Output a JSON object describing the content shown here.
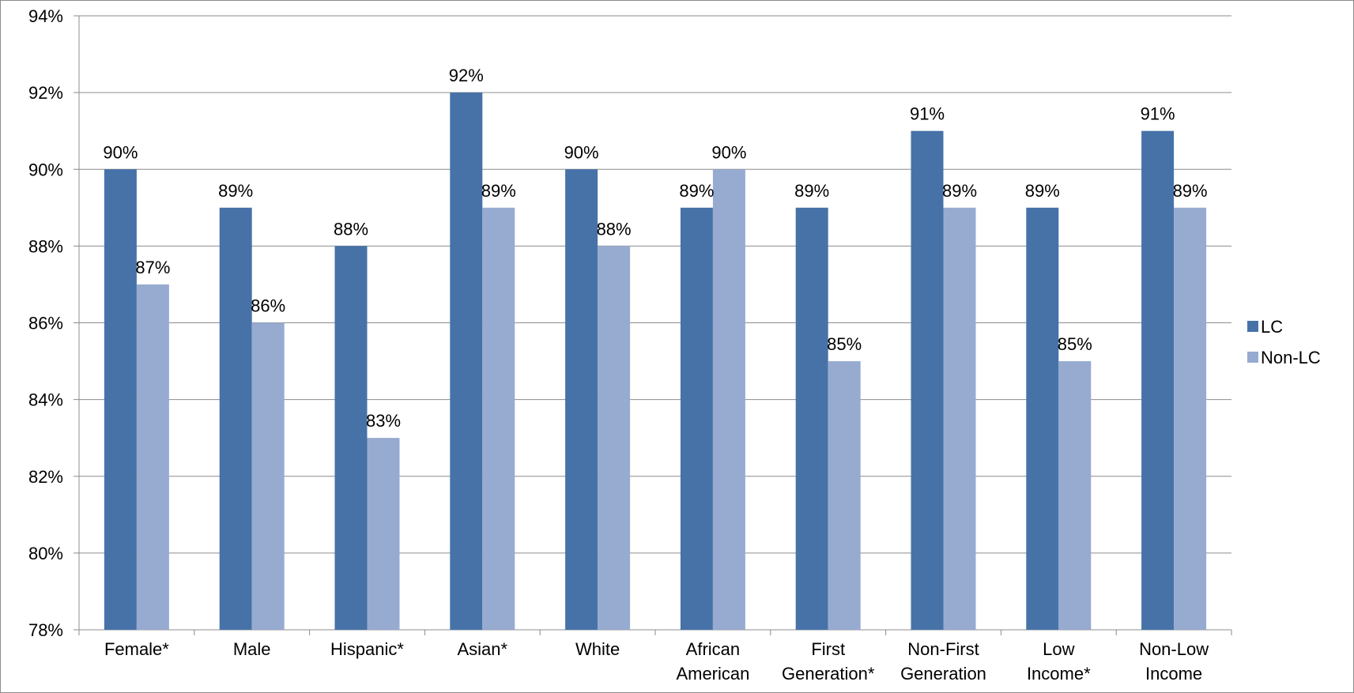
{
  "chart_data": {
    "type": "bar",
    "title": "",
    "xlabel": "",
    "ylabel": "",
    "ylim": [
      78,
      94
    ],
    "y_ticks": [
      78,
      80,
      82,
      84,
      86,
      88,
      90,
      92,
      94
    ],
    "y_tick_format": "%",
    "grid": true,
    "legend_position": "right",
    "categories": [
      [
        "Female*"
      ],
      [
        "Male"
      ],
      [
        "Hispanic*"
      ],
      [
        "Asian*"
      ],
      [
        "White"
      ],
      [
        "African",
        "American"
      ],
      [
        "First",
        "Generation*"
      ],
      [
        "Non-First",
        "Generation"
      ],
      [
        "Low",
        "Income*"
      ],
      [
        "Non-Low",
        "Income"
      ]
    ],
    "series": [
      {
        "name": "LC",
        "color": "#4672a8",
        "values": [
          90,
          89,
          88,
          92,
          90,
          89,
          89,
          91,
          89,
          91
        ],
        "labels": [
          "90%",
          "89%",
          "88%",
          "92%",
          "90%",
          "89%",
          "89%",
          "91%",
          "89%",
          "91%"
        ]
      },
      {
        "name": "Non-LC",
        "color": "#97abd1",
        "values": [
          87,
          86,
          83,
          89,
          88,
          90,
          85,
          89,
          85,
          89
        ],
        "labels": [
          "87%",
          "86%",
          "83%",
          "89%",
          "88%",
          "90%",
          "85%",
          "89%",
          "85%",
          "89%"
        ]
      }
    ]
  }
}
